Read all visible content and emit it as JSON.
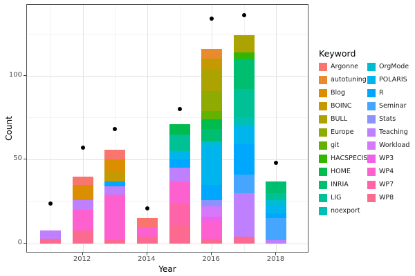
{
  "figure": {
    "bg": "#ffffff"
  },
  "panel": {
    "bg": "#ffffff",
    "border_color": "#4d4d4d",
    "grid_major_color": "#e3e3e3",
    "grid_minor_color": "#f2f2f2"
  },
  "axis": {
    "x": {
      "title": "Year",
      "tick_labels": [
        "2012",
        "2014",
        "2016",
        "2018"
      ],
      "tick_years": [
        2012,
        2014,
        2016,
        2018
      ]
    },
    "y": {
      "title": "Count",
      "tick_labels": [
        "0",
        "50",
        "100"
      ],
      "tick_values": [
        0,
        50,
        100
      ],
      "minor_values": [
        25,
        75,
        125
      ]
    }
  },
  "legend": {
    "title": "Keyword",
    "columns": [
      [
        "Argonne",
        "autotuning",
        "Blog",
        "BOINC",
        "BULL",
        "Europe",
        "git",
        "HACSPECIS",
        "HOME",
        "INRIA",
        "LIG",
        "noexport"
      ],
      [
        "OrgMode",
        "POLARIS",
        "R",
        "Seminar",
        "Stats",
        "Teaching",
        "Workload",
        "WP3",
        "WP4",
        "WP7",
        "WP8"
      ]
    ]
  },
  "chart_data": {
    "type": "bar",
    "subtype": "stacked",
    "title": "",
    "xlabel": "Year",
    "ylabel": "Count",
    "ylim": [
      0,
      140
    ],
    "grid": true,
    "legend_position": "right",
    "x": [
      2011,
      2012,
      2013,
      2014,
      2015,
      2016,
      2017,
      2018
    ],
    "series": [
      {
        "name": "Argonne",
        "color": "#F8766D",
        "values": [
          0,
          5,
          6,
          5,
          0,
          0,
          0,
          0
        ]
      },
      {
        "name": "autotuning",
        "color": "#E98A2C",
        "values": [
          0,
          0,
          0,
          0,
          0,
          6,
          0,
          0
        ]
      },
      {
        "name": "Blog",
        "color": "#DB8E00",
        "values": [
          0,
          9,
          7,
          0,
          0,
          0,
          0,
          0
        ]
      },
      {
        "name": "BOINC",
        "color": "#C59900",
        "values": [
          0,
          0,
          6,
          0,
          0,
          6,
          0,
          0
        ]
      },
      {
        "name": "BULL",
        "color": "#ACA300",
        "values": [
          0,
          0,
          0,
          0,
          0,
          13,
          10,
          0
        ]
      },
      {
        "name": "Europe",
        "color": "#8FAA00",
        "values": [
          0,
          0,
          0,
          0,
          0,
          12,
          0,
          0
        ]
      },
      {
        "name": "git",
        "color": "#63B200",
        "values": [
          0,
          0,
          0,
          0,
          0,
          5,
          0,
          0
        ]
      },
      {
        "name": "HACSPECIS",
        "color": "#32B600",
        "values": [
          0,
          0,
          0,
          0,
          0,
          0,
          4,
          0
        ]
      },
      {
        "name": "HOME",
        "color": "#00BB4E",
        "values": [
          0,
          0,
          0,
          0,
          6,
          6,
          0,
          0
        ]
      },
      {
        "name": "INRIA",
        "color": "#00BE70",
        "values": [
          0,
          0,
          0,
          0,
          0,
          7,
          18,
          7
        ]
      },
      {
        "name": "LIG",
        "color": "#00C096",
        "values": [
          0,
          0,
          0,
          0,
          10,
          0,
          17,
          4
        ]
      },
      {
        "name": "noexport",
        "color": "#00C0B5",
        "values": [
          0,
          0,
          0,
          0,
          0,
          0,
          5,
          0
        ]
      },
      {
        "name": "OrgMode",
        "color": "#00BCD3",
        "values": [
          0,
          0,
          0,
          0,
          0,
          3,
          0,
          3
        ]
      },
      {
        "name": "POLARIS",
        "color": "#00B4EE",
        "values": [
          0,
          0,
          0,
          0,
          5,
          23,
          11,
          5
        ]
      },
      {
        "name": "R",
        "color": "#00A7FF",
        "values": [
          0,
          0,
          3,
          0,
          5,
          9,
          18,
          3
        ]
      },
      {
        "name": "Seminar",
        "color": "#45A5FF",
        "values": [
          0,
          0,
          0,
          0,
          0,
          0,
          11,
          13
        ]
      },
      {
        "name": "Stats",
        "color": "#8B93FF",
        "values": [
          0,
          0,
          0,
          0,
          0,
          4,
          0,
          0
        ]
      },
      {
        "name": "Teaching",
        "color": "#BF80FF",
        "values": [
          5,
          6,
          5,
          0,
          8,
          0,
          26,
          2
        ]
      },
      {
        "name": "Workload",
        "color": "#D678FA",
        "values": [
          0,
          0,
          0,
          0,
          0,
          6,
          0,
          0
        ]
      },
      {
        "name": "WP3",
        "color": "#EF61E9",
        "values": [
          0,
          0,
          0,
          0,
          0,
          3,
          0,
          0
        ]
      },
      {
        "name": "WP4",
        "color": "#FC61CF",
        "values": [
          0,
          12,
          27,
          6,
          13,
          10,
          0,
          0
        ]
      },
      {
        "name": "WP7",
        "color": "#FF63A8",
        "values": [
          0,
          0,
          0,
          0,
          13,
          0,
          0,
          0
        ]
      },
      {
        "name": "WP8",
        "color": "#FC6A90",
        "values": [
          3,
          8,
          2,
          4,
          11,
          3,
          4,
          0
        ]
      }
    ],
    "bar_totals": [
      8,
      40,
      56,
      15,
      71,
      116,
      124,
      37
    ],
    "points": {
      "name": "yearly-total-dots",
      "color": "#000000",
      "values": [
        24,
        57,
        68,
        21,
        80,
        134,
        136,
        48
      ]
    },
    "stack_order": "reverse-alphabetical-bottom-up"
  }
}
